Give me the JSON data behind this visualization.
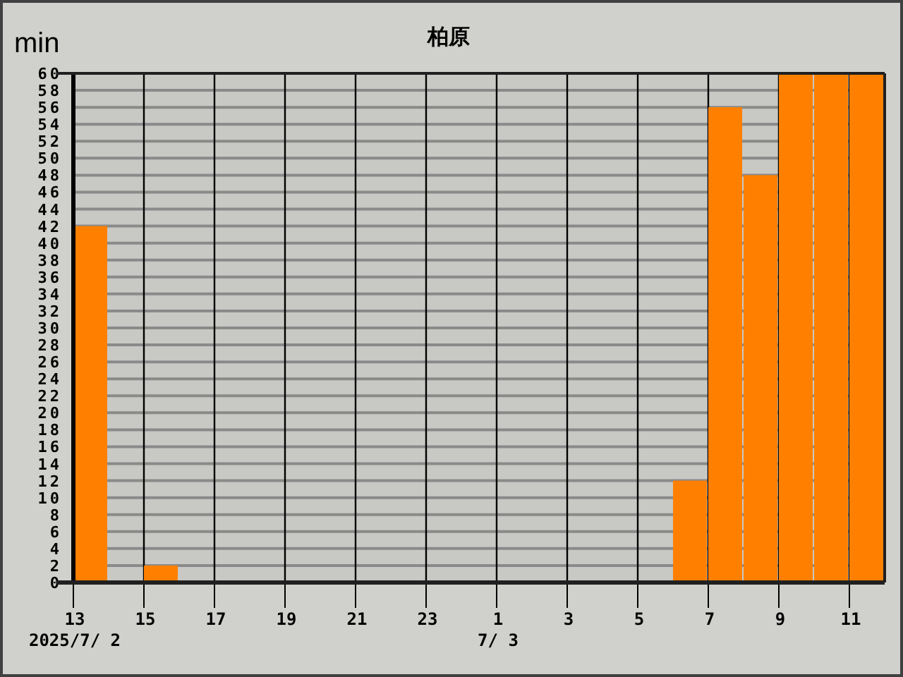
{
  "chart_data": {
    "type": "histogram",
    "title": "柏原",
    "ylabel": "min",
    "bins": [
      "2025-07-02T13:00",
      "2025-07-02T14:00",
      "2025-07-02T15:00",
      "2025-07-02T16:00",
      "2025-07-02T17:00",
      "2025-07-02T18:00",
      "2025-07-02T19:00",
      "2025-07-02T20:00",
      "2025-07-02T21:00",
      "2025-07-02T22:00",
      "2025-07-02T23:00",
      "2025-07-03T00:00",
      "2025-07-03T01:00",
      "2025-07-03T02:00",
      "2025-07-03T03:00",
      "2025-07-03T04:00",
      "2025-07-03T05:00",
      "2025-07-03T06:00",
      "2025-07-03T07:00",
      "2025-07-03T08:00",
      "2025-07-03T09:00",
      "2025-07-03T10:00",
      "2025-07-03T11:00",
      "2025-07-03T12:00"
    ],
    "values": [
      42,
      0,
      2,
      0,
      0,
      0,
      0,
      0,
      0,
      0,
      0,
      0,
      0,
      0,
      0,
      0,
      0,
      12,
      56,
      48,
      60,
      60,
      60
    ],
    "color": "#ff8000",
    "xlim": [
      "2025-07-02T13:00",
      "2025-07-03T12:00"
    ],
    "xticks": [
      {
        "value": "2025-07-02T13:00",
        "label": "13\n2025/7/ 2"
      },
      {
        "value": "2025-07-02T15:00",
        "label": "15"
      },
      {
        "value": "2025-07-02T17:00",
        "label": "17"
      },
      {
        "value": "2025-07-02T19:00",
        "label": "19"
      },
      {
        "value": "2025-07-02T21:00",
        "label": "21"
      },
      {
        "value": "2025-07-02T23:00",
        "label": "23"
      },
      {
        "value": "2025-07-03T01:00",
        "label": "1\n7/ 3"
      },
      {
        "value": "2025-07-03T03:00",
        "label": "3"
      },
      {
        "value": "2025-07-03T05:00",
        "label": "5"
      },
      {
        "value": "2025-07-03T07:00",
        "label": "7"
      },
      {
        "value": "2025-07-03T09:00",
        "label": "9"
      },
      {
        "value": "2025-07-03T11:00",
        "label": "11"
      }
    ],
    "ylim": [
      0,
      60
    ],
    "yticks": [
      0,
      2,
      4,
      6,
      8,
      10,
      12,
      14,
      16,
      18,
      20,
      22,
      24,
      26,
      28,
      30,
      32,
      34,
      36,
      38,
      40,
      42,
      44,
      46,
      48,
      50,
      52,
      54,
      56,
      58,
      60
    ],
    "grid": true
  }
}
